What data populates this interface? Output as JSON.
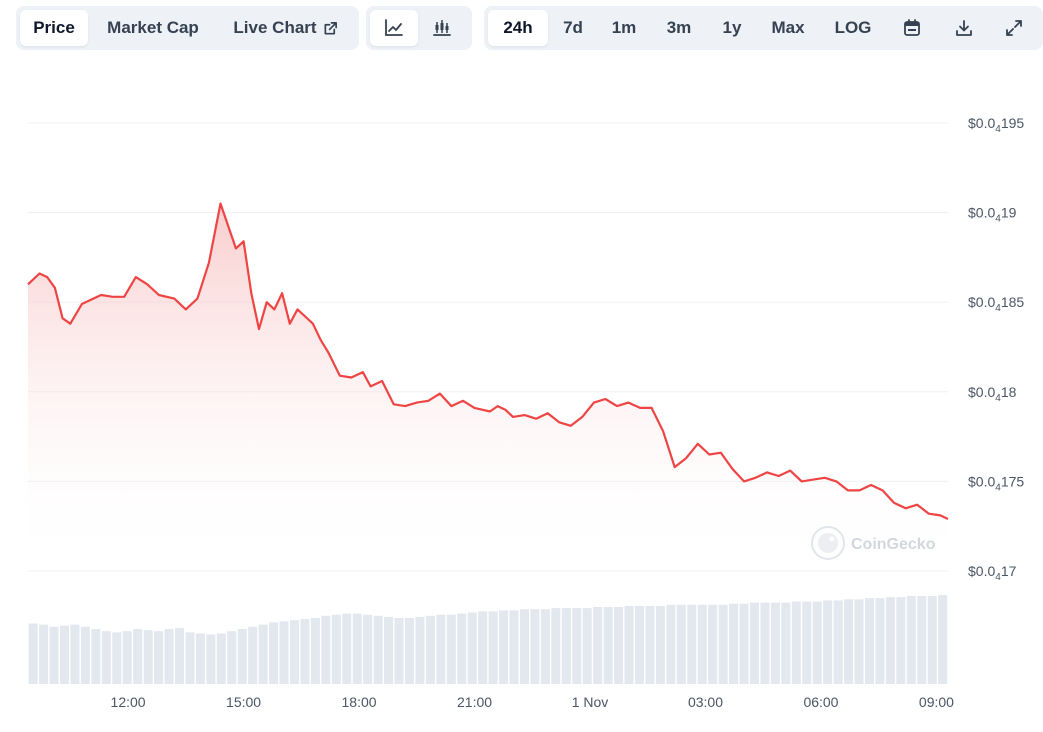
{
  "toolbar": {
    "metric_tabs": [
      {
        "label": "Price",
        "active": true
      },
      {
        "label": "Market Cap",
        "active": false
      },
      {
        "label": "Live Chart",
        "active": false
      }
    ],
    "chart_type_buttons": [
      {
        "icon": "line-chart-icon",
        "active": true
      },
      {
        "icon": "candlestick-chart-icon",
        "active": false
      }
    ],
    "ranges": [
      {
        "label": "24h",
        "active": true
      },
      {
        "label": "7d",
        "active": false
      },
      {
        "label": "1m",
        "active": false
      },
      {
        "label": "3m",
        "active": false
      },
      {
        "label": "1y",
        "active": false
      },
      {
        "label": "Max",
        "active": false
      },
      {
        "label": "LOG",
        "active": false
      }
    ],
    "tool_icons": [
      "calendar-icon",
      "download-icon",
      "expand-icon"
    ]
  },
  "watermark": "CoinGecko",
  "colors": {
    "line": "#ef4444",
    "area_top": "#f8c4c4",
    "volume": "#e3e8ef",
    "grid": "#eef0f3",
    "toolbar_bg": "#eef2f6"
  },
  "chart_data": {
    "type": "area",
    "x_ticks": [
      "12:00",
      "15:00",
      "18:00",
      "21:00",
      "1 Nov",
      "03:00",
      "06:00",
      "09:00"
    ],
    "y_ticks": [
      {
        "prefix": "$0.0",
        "sub": "4",
        "suffix": "17",
        "value": 1.7e-05
      },
      {
        "prefix": "$0.0",
        "sub": "4",
        "suffix": "175",
        "value": 1.75e-05
      },
      {
        "prefix": "$0.0",
        "sub": "4",
        "suffix": "18",
        "value": 1.8e-05
      },
      {
        "prefix": "$0.0",
        "sub": "4",
        "suffix": "185",
        "value": 1.85e-05
      },
      {
        "prefix": "$0.0",
        "sub": "4",
        "suffix": "19",
        "value": 1.9e-05
      },
      {
        "prefix": "$0.0",
        "sub": "4",
        "suffix": "195",
        "value": 1.95e-05
      }
    ],
    "ylim": [
      1.7e-05,
      1.95e-05
    ],
    "x_hours": [
      9.4,
      9.7,
      9.9,
      10.1,
      10.3,
      10.5,
      10.8,
      11.0,
      11.3,
      11.6,
      11.9,
      12.2,
      12.5,
      12.8,
      13.2,
      13.5,
      13.8,
      14.1,
      14.4,
      14.8,
      15.0,
      15.2,
      15.4,
      15.6,
      15.8,
      16.0,
      16.2,
      16.4,
      16.6,
      16.8,
      17.0,
      17.2,
      17.5,
      17.8,
      18.1,
      18.3,
      18.6,
      18.9,
      19.2,
      19.5,
      19.8,
      20.1,
      20.4,
      20.7,
      21.0,
      21.2,
      21.4,
      21.6,
      21.8,
      22.0,
      22.3,
      22.6,
      22.9,
      23.2,
      23.5,
      23.8,
      24.1,
      24.4,
      24.7,
      25.0,
      25.3,
      25.6,
      25.9,
      26.2,
      26.5,
      26.8,
      27.1,
      27.4,
      27.7,
      28.0,
      28.3,
      28.6,
      28.9,
      29.2,
      29.5,
      29.8,
      30.1,
      30.4,
      30.7,
      31.0,
      31.3,
      31.6,
      31.9,
      32.2,
      32.5,
      32.8,
      33.1,
      33.3
    ],
    "prices": [
      1.86e-05,
      1.866e-05,
      1.864e-05,
      1.858e-05,
      1.841e-05,
      1.838e-05,
      1.849e-05,
      1.851e-05,
      1.854e-05,
      1.853e-05,
      1.853e-05,
      1.864e-05,
      1.86e-05,
      1.854e-05,
      1.852e-05,
      1.846e-05,
      1.852e-05,
      1.872e-05,
      1.905e-05,
      1.88e-05,
      1.884e-05,
      1.855e-05,
      1.835e-05,
      1.85e-05,
      1.846e-05,
      1.855e-05,
      1.838e-05,
      1.846e-05,
      1.842e-05,
      1.838e-05,
      1.829e-05,
      1.822e-05,
      1.809e-05,
      1.808e-05,
      1.811e-05,
      1.803e-05,
      1.806e-05,
      1.793e-05,
      1.792e-05,
      1.794e-05,
      1.795e-05,
      1.799e-05,
      1.792e-05,
      1.795e-05,
      1.791e-05,
      1.79e-05,
      1.789e-05,
      1.792e-05,
      1.79e-05,
      1.786e-05,
      1.787e-05,
      1.785e-05,
      1.788e-05,
      1.783e-05,
      1.781e-05,
      1.786e-05,
      1.794e-05,
      1.796e-05,
      1.792e-05,
      1.794e-05,
      1.791e-05,
      1.791e-05,
      1.778e-05,
      1.758e-05,
      1.763e-05,
      1.771e-05,
      1.765e-05,
      1.766e-05,
      1.757e-05,
      1.75e-05,
      1.752e-05,
      1.755e-05,
      1.753e-05,
      1.756e-05,
      1.75e-05,
      1.751e-05,
      1.752e-05,
      1.75e-05,
      1.745e-05,
      1.745e-05,
      1.748e-05,
      1.745e-05,
      1.738e-05,
      1.735e-05,
      1.737e-05,
      1.732e-05,
      1.731e-05,
      1.729e-05
    ],
    "volume_relative": [
      0.55,
      0.54,
      0.52,
      0.53,
      0.54,
      0.52,
      0.5,
      0.48,
      0.47,
      0.48,
      0.5,
      0.49,
      0.48,
      0.5,
      0.51,
      0.47,
      0.46,
      0.45,
      0.46,
      0.48,
      0.5,
      0.52,
      0.54,
      0.56,
      0.57,
      0.58,
      0.59,
      0.6,
      0.62,
      0.63,
      0.64,
      0.64,
      0.63,
      0.62,
      0.61,
      0.6,
      0.6,
      0.61,
      0.62,
      0.63,
      0.63,
      0.64,
      0.65,
      0.66,
      0.66,
      0.67,
      0.67,
      0.68,
      0.68,
      0.68,
      0.69,
      0.69,
      0.69,
      0.69,
      0.7,
      0.7,
      0.7,
      0.71,
      0.71,
      0.71,
      0.71,
      0.72,
      0.72,
      0.72,
      0.72,
      0.72,
      0.72,
      0.73,
      0.73,
      0.74,
      0.74,
      0.74,
      0.74,
      0.75,
      0.75,
      0.75,
      0.76,
      0.76,
      0.77,
      0.77,
      0.78,
      0.78,
      0.79,
      0.79,
      0.8,
      0.8,
      0.8,
      0.81
    ],
    "legend": "none",
    "grid": true
  }
}
